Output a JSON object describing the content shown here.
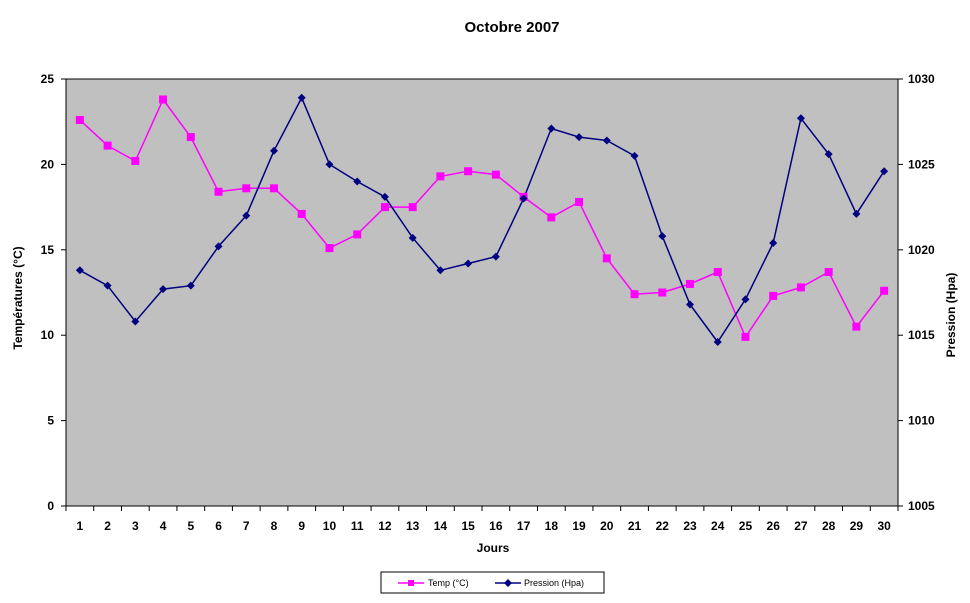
{
  "chart_data": {
    "type": "line",
    "title": "Octobre 2007",
    "xlabel": "Jours",
    "ylabel_left": "Températures (°C)",
    "ylabel_right": "Pression (Hpa)",
    "categories": [
      "1",
      "2",
      "3",
      "4",
      "5",
      "6",
      "7",
      "8",
      "9",
      "10",
      "11",
      "12",
      "13",
      "14",
      "15",
      "16",
      "17",
      "18",
      "19",
      "20",
      "21",
      "22",
      "23",
      "24",
      "25",
      "26",
      "27",
      "28",
      "29",
      "30"
    ],
    "ylim_left": [
      0,
      25
    ],
    "yticks_left": [
      "0",
      "5",
      "10",
      "15",
      "20",
      "25"
    ],
    "ylim_right": [
      1005,
      1030
    ],
    "yticks_right": [
      "1005",
      "1010",
      "1015",
      "1020",
      "1025",
      "1030"
    ],
    "grid": false,
    "legend_position": "bottom",
    "plot_background": "#c0c0c0",
    "series": [
      {
        "name": "Temp (°C)",
        "axis": "left",
        "color": "#ff00ff",
        "marker": "square",
        "values": [
          22.6,
          21.1,
          20.2,
          23.8,
          21.6,
          18.4,
          18.6,
          18.6,
          17.1,
          15.1,
          15.9,
          17.5,
          17.5,
          19.3,
          19.6,
          19.4,
          18.1,
          16.9,
          17.8,
          14.5,
          12.4,
          12.5,
          13.0,
          13.7,
          9.9,
          12.3,
          12.8,
          13.7,
          10.5,
          12.6
        ]
      },
      {
        "name": "Pression (Hpa)",
        "axis": "right",
        "color": "#000080",
        "marker": "diamond",
        "values": [
          1018.8,
          1017.9,
          1015.8,
          1017.7,
          1017.9,
          1020.2,
          1022.0,
          1025.8,
          1028.9,
          1025.0,
          1024.0,
          1023.1,
          1020.7,
          1018.8,
          1019.2,
          1019.6,
          1023.0,
          1027.1,
          1026.6,
          1026.4,
          1025.5,
          1020.8,
          1016.8,
          1014.6,
          1017.1,
          1020.4,
          1027.7,
          1025.6,
          1022.1,
          1024.6
        ]
      }
    ]
  }
}
